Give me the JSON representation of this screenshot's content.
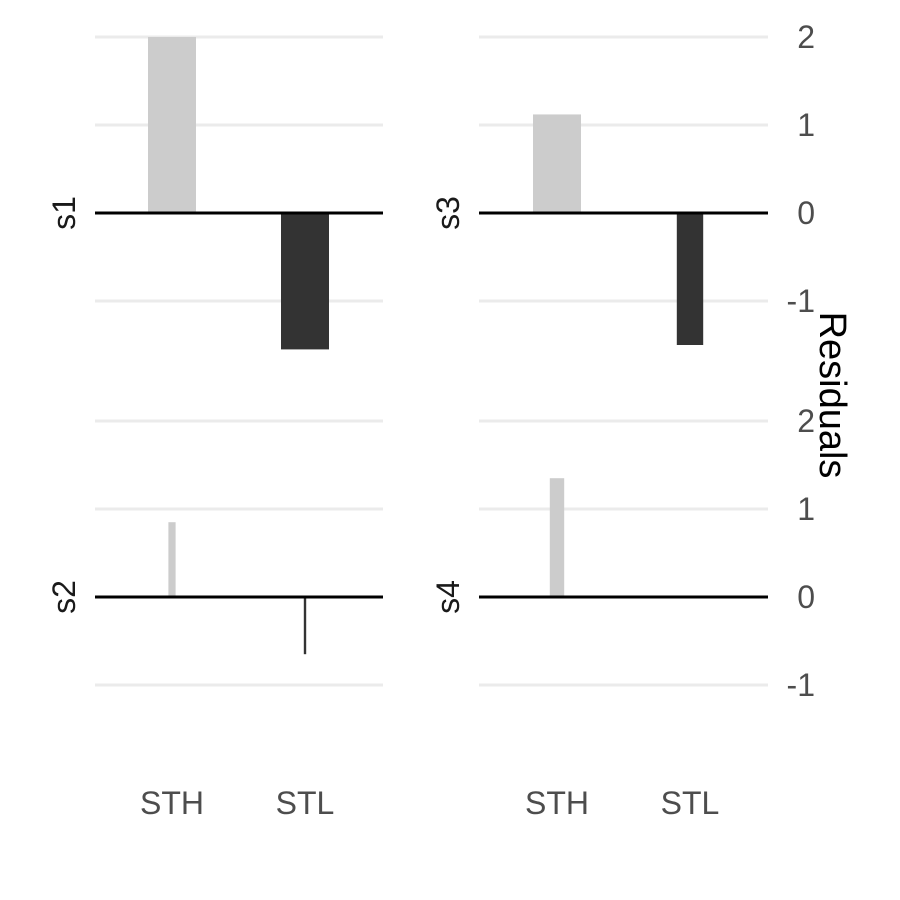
{
  "chart_data": {
    "type": "bar",
    "ylabel": "Residuals",
    "categories": [
      "STH",
      "STL"
    ],
    "y_ticks": [
      -1,
      0,
      1,
      2
    ],
    "ylim": [
      -1.4,
      2.05
    ],
    "grid": true,
    "colors": {
      "positive": "#cccccc",
      "negative": "#333333",
      "gridline": "#ebebeb",
      "zero_line": "#000000"
    },
    "panels": [
      {
        "label": "s1",
        "values": [
          2.0,
          -1.55
        ],
        "bar_weights": [
          1,
          1
        ]
      },
      {
        "label": "s2",
        "values": [
          0.85,
          -0.65
        ],
        "bar_weights": [
          0.15,
          0.05
        ]
      },
      {
        "label": "s3",
        "values": [
          1.12,
          -1.5
        ],
        "bar_weights": [
          1,
          0.55
        ]
      },
      {
        "label": "s4",
        "values": [
          1.35,
          0
        ],
        "bar_weights": [
          0.3,
          0
        ]
      }
    ]
  }
}
